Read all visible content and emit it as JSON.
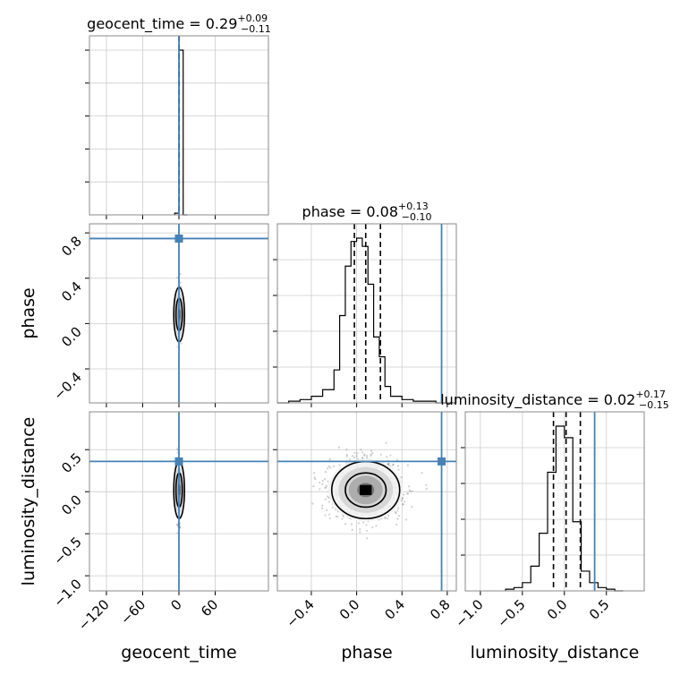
{
  "chart_data": {
    "type": "corner",
    "parameters": [
      "geocent_time",
      "phase",
      "luminosity_distance"
    ],
    "axis_labels": [
      "geocent_time",
      "phase",
      "luminosity_distance"
    ],
    "titles": [
      {
        "name": "geocent_time",
        "median": "0.29",
        "plus": "+0.09",
        "minus": "−0.11"
      },
      {
        "name": "phase",
        "median": "0.08",
        "plus": "+0.13",
        "minus": "−0.10"
      },
      {
        "name": "luminosity_distance",
        "median": "0.02",
        "plus": "+0.17",
        "minus": "−0.15"
      }
    ],
    "truths": {
      "geocent_time": 0.0,
      "phase": 0.75,
      "luminosity_distance": 0.36
    },
    "truth_color": "#4682b4",
    "ranges": {
      "geocent_time": [
        -148,
        148
      ],
      "phase": [
        -0.7,
        0.88
      ],
      "luminosity_distance": [
        -1.18,
        0.95
      ]
    },
    "ticks": {
      "geocent_time": {
        "values": [
          -120,
          -60,
          0,
          60
        ],
        "labels": [
          "−120",
          "−60",
          "0",
          "60"
        ]
      },
      "phase_y": {
        "values": [
          -0.4,
          0.0,
          0.4,
          0.8
        ],
        "labels": [
          "−0.4",
          "0.0",
          "0.4",
          "0.8"
        ]
      },
      "phase_x": {
        "values": [
          -0.4,
          0.0,
          0.4,
          0.8
        ],
        "labels": [
          "−0.4",
          "0.0",
          "0.4",
          "0.8"
        ]
      },
      "luminosity_distance_y": {
        "values": [
          -1.0,
          -0.5,
          0.0,
          0.5
        ],
        "labels": [
          "−1.0",
          "−0.5",
          "0.0",
          "0.5"
        ]
      },
      "luminosity_distance_x": {
        "values": [
          -1.0,
          -0.5,
          0.0,
          0.5
        ],
        "labels": [
          "−1.0",
          "−0.5",
          "0.0",
          "0.5"
        ]
      }
    },
    "histograms": {
      "geocent_time": {
        "bin_edges": [
          -7,
          0,
          7,
          14
        ],
        "counts": [
          0.01,
          1.0,
          0.0
        ],
        "quantiles": [
          0.18,
          0.29,
          0.38
        ]
      },
      "phase": {
        "bin_edges": [
          -0.7,
          -0.6,
          -0.5,
          -0.4,
          -0.3,
          -0.2,
          -0.15,
          -0.1,
          -0.05,
          0.0,
          0.05,
          0.1,
          0.15,
          0.2,
          0.25,
          0.3,
          0.4,
          0.5,
          0.6,
          0.7,
          0.88
        ],
        "counts": [
          0.0,
          0.01,
          0.02,
          0.04,
          0.08,
          0.2,
          0.53,
          0.83,
          0.98,
          1.0,
          0.95,
          0.72,
          0.4,
          0.28,
          0.1,
          0.04,
          0.02,
          0.01,
          0.01,
          0.0
        ],
        "quantiles": [
          -0.02,
          0.08,
          0.21
        ]
      },
      "luminosity_distance": {
        "bin_edges": [
          -0.7,
          -0.6,
          -0.5,
          -0.4,
          -0.3,
          -0.2,
          -0.1,
          0.0,
          0.1,
          0.2,
          0.3,
          0.4,
          0.5,
          0.6,
          0.7
        ],
        "counts": [
          0.01,
          0.02,
          0.05,
          0.15,
          0.35,
          0.72,
          1.0,
          0.93,
          0.42,
          0.12,
          0.05,
          0.02,
          0.01,
          0.0
        ],
        "quantiles": [
          -0.13,
          0.02,
          0.19
        ]
      }
    },
    "scatter": {
      "phase_vs_geocent_time": {
        "center": [
          0.3,
          0.08
        ],
        "spread": [
          2.0,
          0.12
        ],
        "n": 380
      },
      "luminosity_distance_vs_geocent_time": {
        "center": [
          0.3,
          0.02
        ],
        "spread": [
          2.0,
          0.17
        ],
        "n": 380
      },
      "luminosity_distance_vs_phase": {
        "center": [
          0.08,
          0.02
        ],
        "spread": [
          0.15,
          0.17
        ],
        "n": 1400
      }
    },
    "grid": true
  }
}
